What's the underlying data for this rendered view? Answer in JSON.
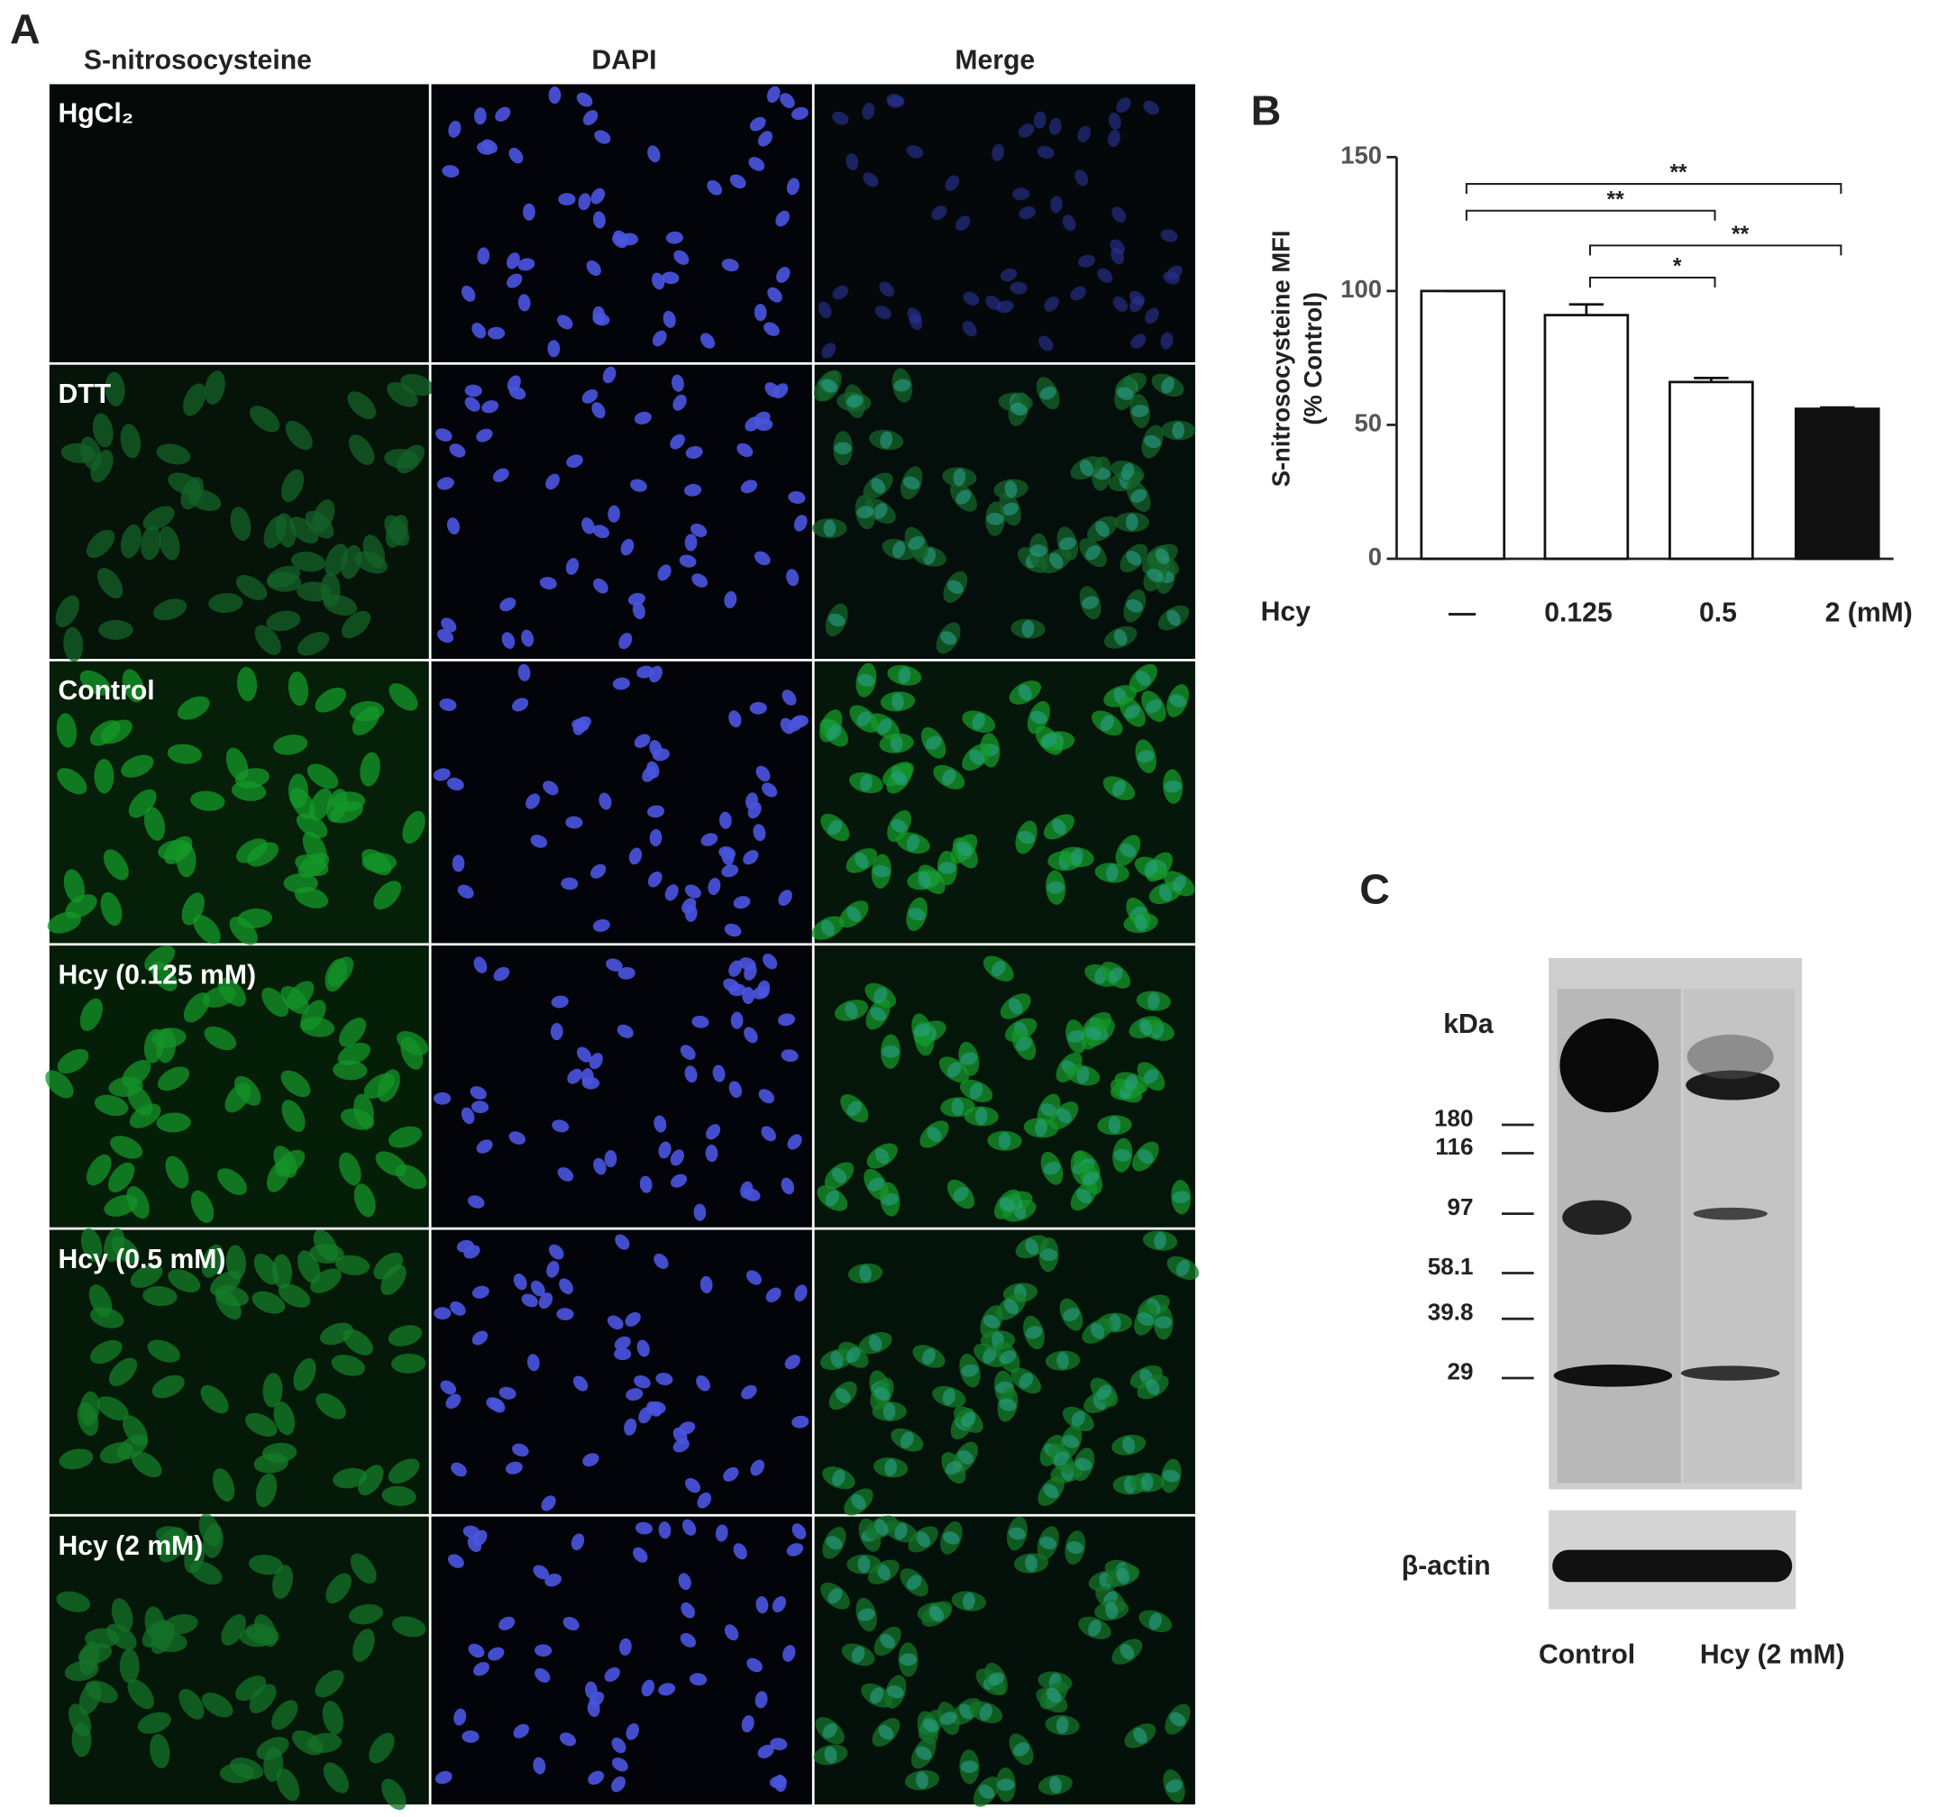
{
  "panel_a": {
    "label": "A",
    "columns": [
      "S-nitrosocysteine",
      "DAPI",
      "Merge"
    ],
    "rows": [
      "HgCl₂",
      "DTT",
      "Control",
      "Hcy (0.125 mM)",
      "Hcy (0.5 mM)",
      "Hcy (2 mM)"
    ]
  },
  "chart_data": {
    "type": "bar",
    "panel_label": "B",
    "categories": [
      "—",
      "0.125",
      "0.5",
      "2 (mM)"
    ],
    "x_label": "Hcy",
    "y_label": [
      "S-nitrosocysteine MFI",
      "(% Control)"
    ],
    "values": [
      100,
      91,
      66,
      56
    ],
    "errors": [
      0,
      4,
      1.5,
      0.5
    ],
    "colors": [
      "#ffffff",
      "#ffffff",
      "#ffffff",
      "#111111"
    ],
    "ylim": [
      0,
      150
    ],
    "yticks": [
      0,
      50,
      100,
      150
    ],
    "significance": [
      {
        "from": 0,
        "to": 3,
        "y": 140,
        "label": "**"
      },
      {
        "from": 0,
        "to": 2,
        "y": 130,
        "label": "**"
      },
      {
        "from": 1,
        "to": 3,
        "y": 117,
        "label": "**"
      },
      {
        "from": 1,
        "to": 2,
        "y": 105,
        "label": "*"
      }
    ]
  },
  "panel_c": {
    "label": "C",
    "unit": "kDa",
    "markers": [
      180,
      116,
      97,
      58.1,
      39.8,
      29
    ],
    "loading_control": "β-actin",
    "lanes": [
      "Control",
      "Hcy (2 mM)"
    ]
  }
}
